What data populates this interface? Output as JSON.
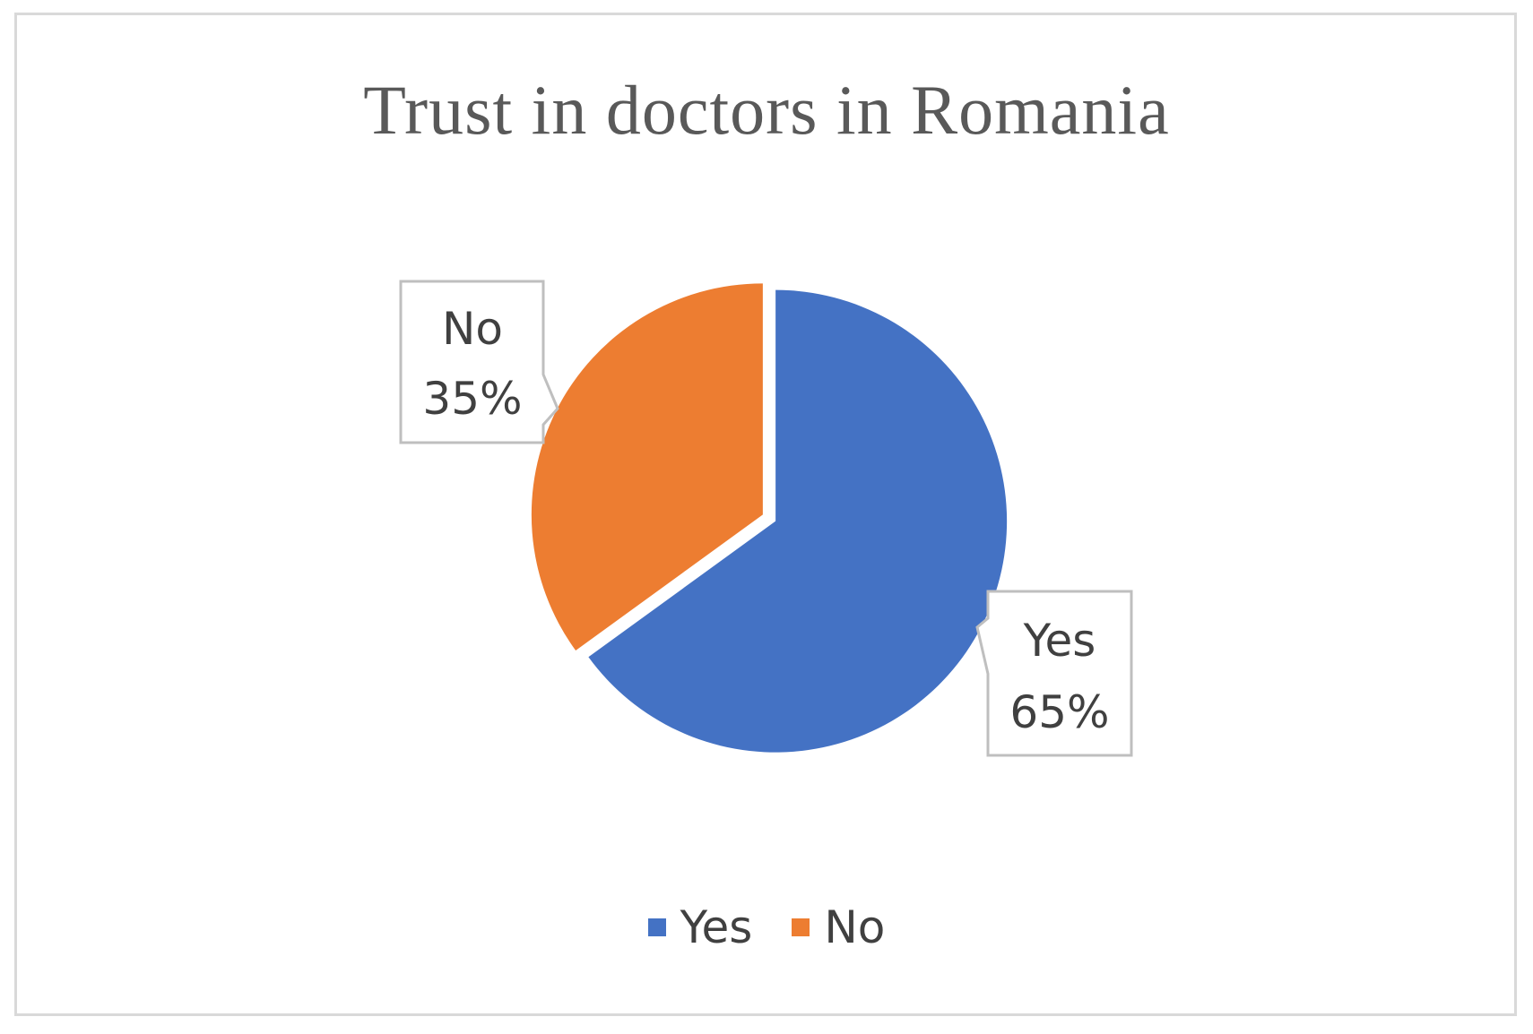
{
  "chart_data": {
    "type": "pie",
    "title": "Trust in doctors in Romania",
    "categories": [
      "Yes",
      "No"
    ],
    "values": [
      65,
      35
    ],
    "colors": [
      "#4472C4",
      "#ED7D31"
    ],
    "data_labels": [
      {
        "category": "Yes",
        "value": "65%"
      },
      {
        "category": "No",
        "value": "35%"
      }
    ],
    "legend": {
      "placement": "bottom",
      "entries": [
        {
          "label": "Yes",
          "color": "#4472C4"
        },
        {
          "label": "No",
          "color": "#ED7D31"
        }
      ]
    }
  }
}
